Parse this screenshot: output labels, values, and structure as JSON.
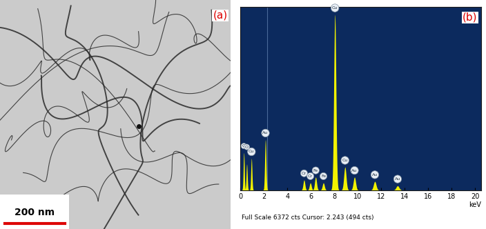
{
  "image_panel": {
    "label": "(a)",
    "scale_bar": "200 nm"
  },
  "chart_data": {
    "type": "spectrum",
    "label": "(b)",
    "x_label": "keV",
    "footer": "Full Scale 6372 cts Cursor: 2.243 (494 cts)",
    "cursor": 2.243,
    "xlim": [
      0,
      20.5
    ],
    "xticks": [
      0,
      2,
      4,
      6,
      8,
      10,
      12,
      14,
      16,
      18,
      20
    ],
    "ylim": [
      0,
      6372
    ],
    "yticks": [],
    "tick_labels": "x",
    "color": "#f2f200",
    "peaks": [
      {
        "energy": 0.28,
        "counts": 1300,
        "label": "C"
      },
      {
        "energy": 0.53,
        "counts": 900,
        "label": "O"
      },
      {
        "energy": 0.93,
        "counts": 1100,
        "label": "Cu"
      },
      {
        "energy": 2.12,
        "counts": 1750,
        "label": "Au"
      },
      {
        "energy": 5.41,
        "counts": 350,
        "label": "Cr"
      },
      {
        "energy": 5.95,
        "counts": 250,
        "label": "Cr"
      },
      {
        "energy": 6.4,
        "counts": 450,
        "label": "Fe"
      },
      {
        "energy": 7.06,
        "counts": 250,
        "label": "Fe"
      },
      {
        "energy": 8.04,
        "counts": 6100,
        "label": "Cu"
      },
      {
        "energy": 8.9,
        "counts": 800,
        "label": "Cu"
      },
      {
        "energy": 9.71,
        "counts": 450,
        "label": "Au"
      },
      {
        "energy": 11.44,
        "counts": 300,
        "label": "Au"
      },
      {
        "energy": 13.38,
        "counts": 150,
        "label": "Au"
      }
    ]
  }
}
